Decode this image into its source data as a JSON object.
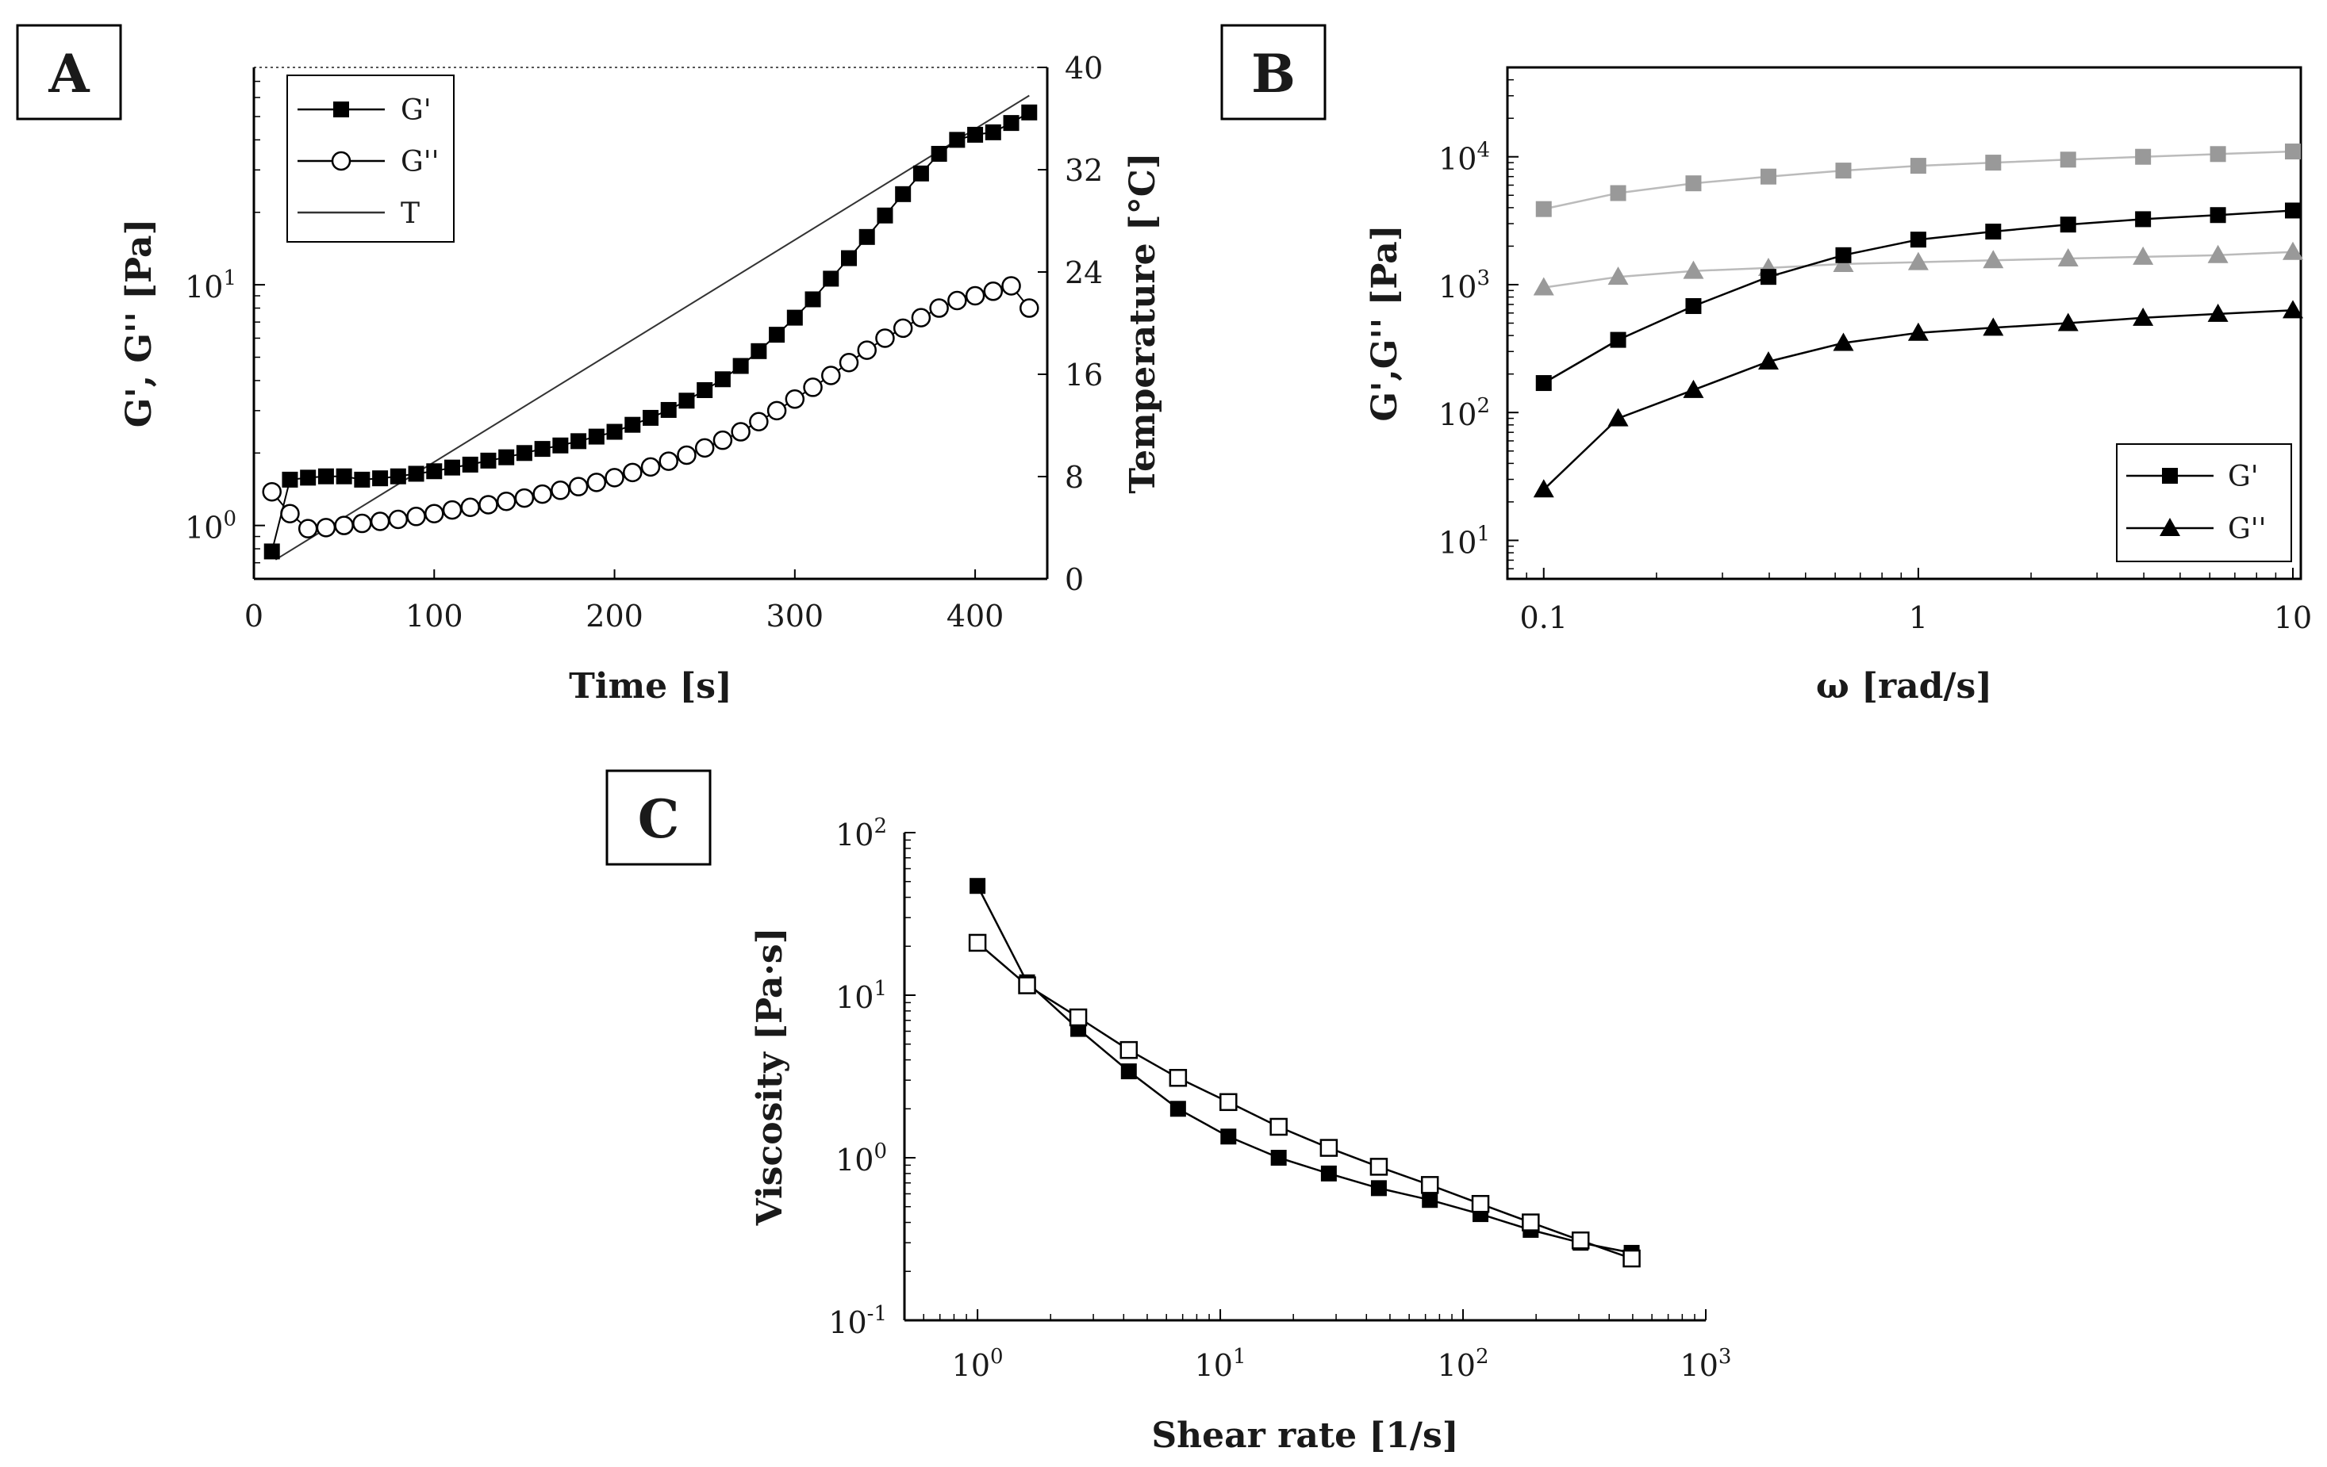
{
  "chart_data": [
    {
      "panel": "A",
      "type": "scatter",
      "xlabel": "Time [s]",
      "ylabel": "G', G'' [Pa]",
      "y2label": "Temperature [°C]",
      "xlim": [
        0,
        440
      ],
      "ylim": [
        0.6,
        80
      ],
      "yscale": "log",
      "y2lim": [
        0,
        40
      ],
      "xticks": [
        "0",
        "100",
        "200",
        "300",
        "400"
      ],
      "yticks": [
        {
          "base": "10",
          "exp": "0"
        },
        {
          "base": "10",
          "exp": "1"
        }
      ],
      "y2ticks": [
        "0",
        "8",
        "16",
        "24",
        "32",
        "40"
      ],
      "legend_position": "top-left",
      "series": [
        {
          "name": "G'",
          "marker": "square-filled",
          "color": "#000000",
          "x": [
            10,
            20,
            30,
            40,
            50,
            60,
            70,
            80,
            90,
            100,
            110,
            120,
            130,
            140,
            150,
            160,
            170,
            180,
            190,
            200,
            210,
            220,
            230,
            240,
            250,
            260,
            270,
            280,
            290,
            300,
            310,
            320,
            330,
            340,
            350,
            360,
            370,
            380,
            390,
            400,
            410,
            420,
            430
          ],
          "y": [
            0.78,
            1.55,
            1.58,
            1.6,
            1.6,
            1.55,
            1.57,
            1.6,
            1.64,
            1.68,
            1.74,
            1.79,
            1.86,
            1.92,
            2.0,
            2.08,
            2.15,
            2.24,
            2.34,
            2.45,
            2.62,
            2.8,
            3.02,
            3.3,
            3.65,
            4.05,
            4.6,
            5.3,
            6.2,
            7.3,
            8.7,
            10.6,
            12.9,
            15.8,
            19.4,
            23.8,
            29,
            35,
            40,
            42,
            43,
            47,
            52
          ]
        },
        {
          "name": "G''",
          "marker": "circle-open",
          "color": "#000000",
          "x": [
            10,
            20,
            30,
            40,
            50,
            60,
            70,
            80,
            90,
            100,
            110,
            120,
            130,
            140,
            150,
            160,
            170,
            180,
            190,
            200,
            210,
            220,
            230,
            240,
            250,
            260,
            270,
            280,
            290,
            300,
            310,
            320,
            330,
            340,
            350,
            360,
            370,
            380,
            390,
            400,
            410,
            420,
            430
          ],
          "y": [
            1.38,
            1.12,
            0.97,
            0.98,
            1.0,
            1.02,
            1.04,
            1.06,
            1.09,
            1.12,
            1.16,
            1.19,
            1.22,
            1.26,
            1.3,
            1.35,
            1.4,
            1.45,
            1.51,
            1.58,
            1.66,
            1.75,
            1.85,
            1.96,
            2.1,
            2.26,
            2.45,
            2.7,
            3.0,
            3.35,
            3.75,
            4.2,
            4.75,
            5.35,
            6.0,
            6.6,
            7.3,
            8.0,
            8.6,
            9.0,
            9.4,
            9.9,
            8.0
          ]
        },
        {
          "name": "T",
          "style": "line",
          "color": "#333333",
          "axis": "right",
          "x": [
            12,
            430
          ],
          "y": [
            1.5,
            37.8
          ]
        }
      ]
    },
    {
      "panel": "B",
      "type": "line",
      "xlabel": "ω [rad/s]",
      "ylabel": "G',G'' [Pa]",
      "xscale": "log",
      "yscale": "log",
      "xlim": [
        0.08,
        10.5
      ],
      "ylim": [
        5,
        50000
      ],
      "xticks": [
        "0.1",
        "1",
        "10"
      ],
      "yticks": [
        {
          "base": "10",
          "exp": "1"
        },
        {
          "base": "10",
          "exp": "2"
        },
        {
          "base": "10",
          "exp": "3"
        },
        {
          "base": "10",
          "exp": "4"
        }
      ],
      "legend_position": "bottom-right",
      "x": [
        0.1,
        0.158,
        0.251,
        0.398,
        0.631,
        1.0,
        1.585,
        2.512,
        3.981,
        6.31,
        10.0
      ],
      "series": [
        {
          "name": "G'",
          "marker": "square-filled",
          "color": "#000000",
          "values": [
            170,
            370,
            680,
            1150,
            1700,
            2250,
            2600,
            2950,
            3250,
            3500,
            3800
          ]
        },
        {
          "name": "G''",
          "marker": "triangle-filled",
          "color": "#000000",
          "values": [
            25,
            90,
            150,
            250,
            350,
            420,
            460,
            500,
            550,
            590,
            630
          ]
        },
        {
          "marker": "square-filled",
          "color": "#999999",
          "values": [
            3900,
            5200,
            6200,
            7000,
            7800,
            8500,
            9000,
            9500,
            10000,
            10500,
            11000
          ]
        },
        {
          "marker": "triangle-filled",
          "color": "#999999",
          "values": [
            950,
            1150,
            1280,
            1350,
            1450,
            1500,
            1550,
            1600,
            1650,
            1700,
            1800
          ]
        }
      ]
    },
    {
      "panel": "C",
      "type": "line",
      "xlabel": "Shear rate [1/s]",
      "ylabel": "Viscosity [Pa·s]",
      "xscale": "log",
      "yscale": "log",
      "xlim": [
        0.5,
        1000
      ],
      "ylim": [
        0.1,
        100
      ],
      "xticks": [
        {
          "base": "10",
          "exp": "0"
        },
        {
          "base": "10",
          "exp": "1"
        },
        {
          "base": "10",
          "exp": "2"
        },
        {
          "base": "10",
          "exp": "3"
        }
      ],
      "yticks": [
        {
          "base": "10",
          "exp": "-1"
        },
        {
          "base": "10",
          "exp": "0"
        },
        {
          "base": "10",
          "exp": "1"
        },
        {
          "base": "10",
          "exp": "2"
        }
      ],
      "x": [
        1.0,
        1.6,
        2.6,
        4.2,
        6.7,
        10.8,
        17.4,
        28,
        45,
        73,
        118,
        190,
        305,
        495
      ],
      "series": [
        {
          "marker": "square-filled",
          "color": "#000000",
          "values": [
            47,
            12,
            6.2,
            3.4,
            2.0,
            1.35,
            1.0,
            0.8,
            0.65,
            0.55,
            0.45,
            0.36,
            0.3,
            0.26
          ]
        },
        {
          "marker": "square-open",
          "color": "#000000",
          "values": [
            21,
            11.5,
            7.3,
            4.6,
            3.1,
            2.2,
            1.55,
            1.15,
            0.88,
            0.68,
            0.52,
            0.4,
            0.31,
            0.24
          ]
        }
      ]
    }
  ]
}
